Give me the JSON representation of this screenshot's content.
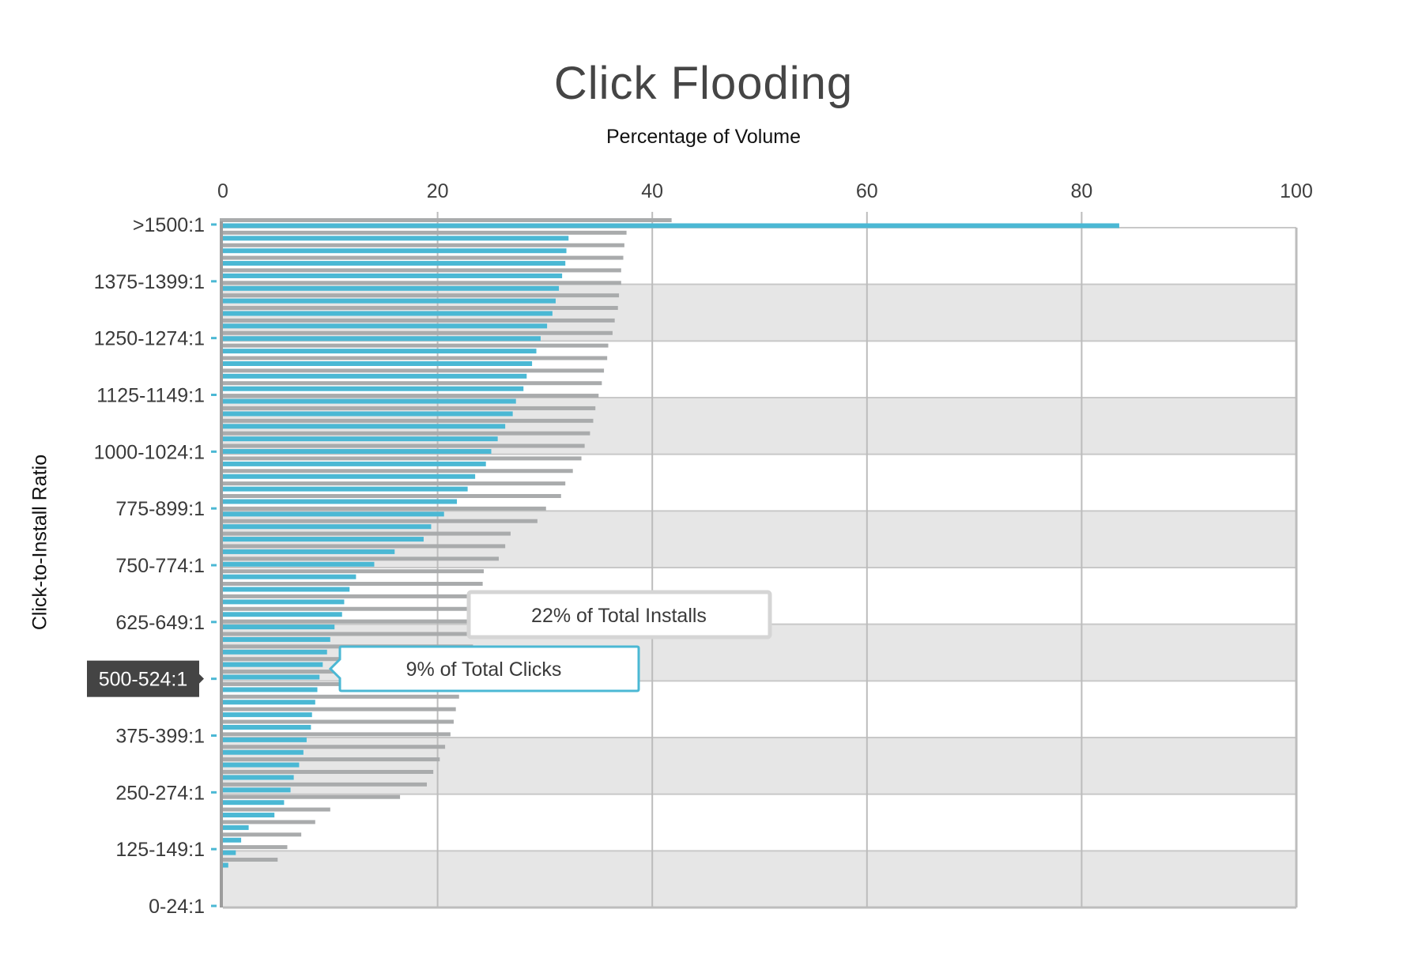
{
  "chart_data": {
    "type": "bar",
    "orientation": "horizontal",
    "title": "Click Flooding",
    "xlabel": "Percentage of Volume",
    "ylabel": "Click-to-Install Ratio",
    "xlim": [
      0,
      100
    ],
    "x_ticks": [
      "0",
      "20",
      "40",
      "60",
      "80",
      "100"
    ],
    "y_tick_labels": [
      "0-24:1",
      "125-149:1",
      "250-274:1",
      "375-399:1",
      "500-524:1",
      "625-649:1",
      "750-774:1",
      "775-899:1",
      "1000-1024:1",
      "1125-1149:1",
      "1250-1274:1",
      "1375-1399:1",
      ">1500:1"
    ],
    "highlighted_category": "500-524:1",
    "grid": true,
    "series": [
      {
        "color": "#4bb8d4",
        "values": [
          0.5,
          1.2,
          1.7,
          2.4,
          4.8,
          5.7,
          6.3,
          6.6,
          7.1,
          7.5,
          7.8,
          8.2,
          8.3,
          8.6,
          8.8,
          9.0,
          9.3,
          9.7,
          10.0,
          10.4,
          11.1,
          11.3,
          11.8,
          12.4,
          14.1,
          16.0,
          18.7,
          19.4,
          20.6,
          21.8,
          22.8,
          23.5,
          24.5,
          25.0,
          25.6,
          26.3,
          27.0,
          27.3,
          28.0,
          28.3,
          28.8,
          29.2,
          29.6,
          30.2,
          30.7,
          31.0,
          31.3,
          31.6,
          31.9,
          32.0,
          32.2,
          83.5
        ]
      },
      {
        "color": "#a9abac",
        "values": [
          5.1,
          6.0,
          7.3,
          8.6,
          10.0,
          16.5,
          19.0,
          19.6,
          20.2,
          20.7,
          21.2,
          21.5,
          21.7,
          22.0,
          22.4,
          22.9,
          23.1,
          23.3,
          23.6,
          23.8,
          24.0,
          24.0,
          24.2,
          24.3,
          25.7,
          26.3,
          26.8,
          29.3,
          30.1,
          31.5,
          31.9,
          32.6,
          33.4,
          33.7,
          34.2,
          34.5,
          34.7,
          35.0,
          35.3,
          35.5,
          35.8,
          35.9,
          36.3,
          36.5,
          36.8,
          36.9,
          37.1,
          37.1,
          37.3,
          37.4,
          37.6,
          41.8
        ]
      }
    ],
    "annotations": [
      {
        "text": "22% of Total Installs",
        "style": "gray callout"
      },
      {
        "text": "9% of Total Clicks",
        "style": "blue callout"
      }
    ]
  }
}
